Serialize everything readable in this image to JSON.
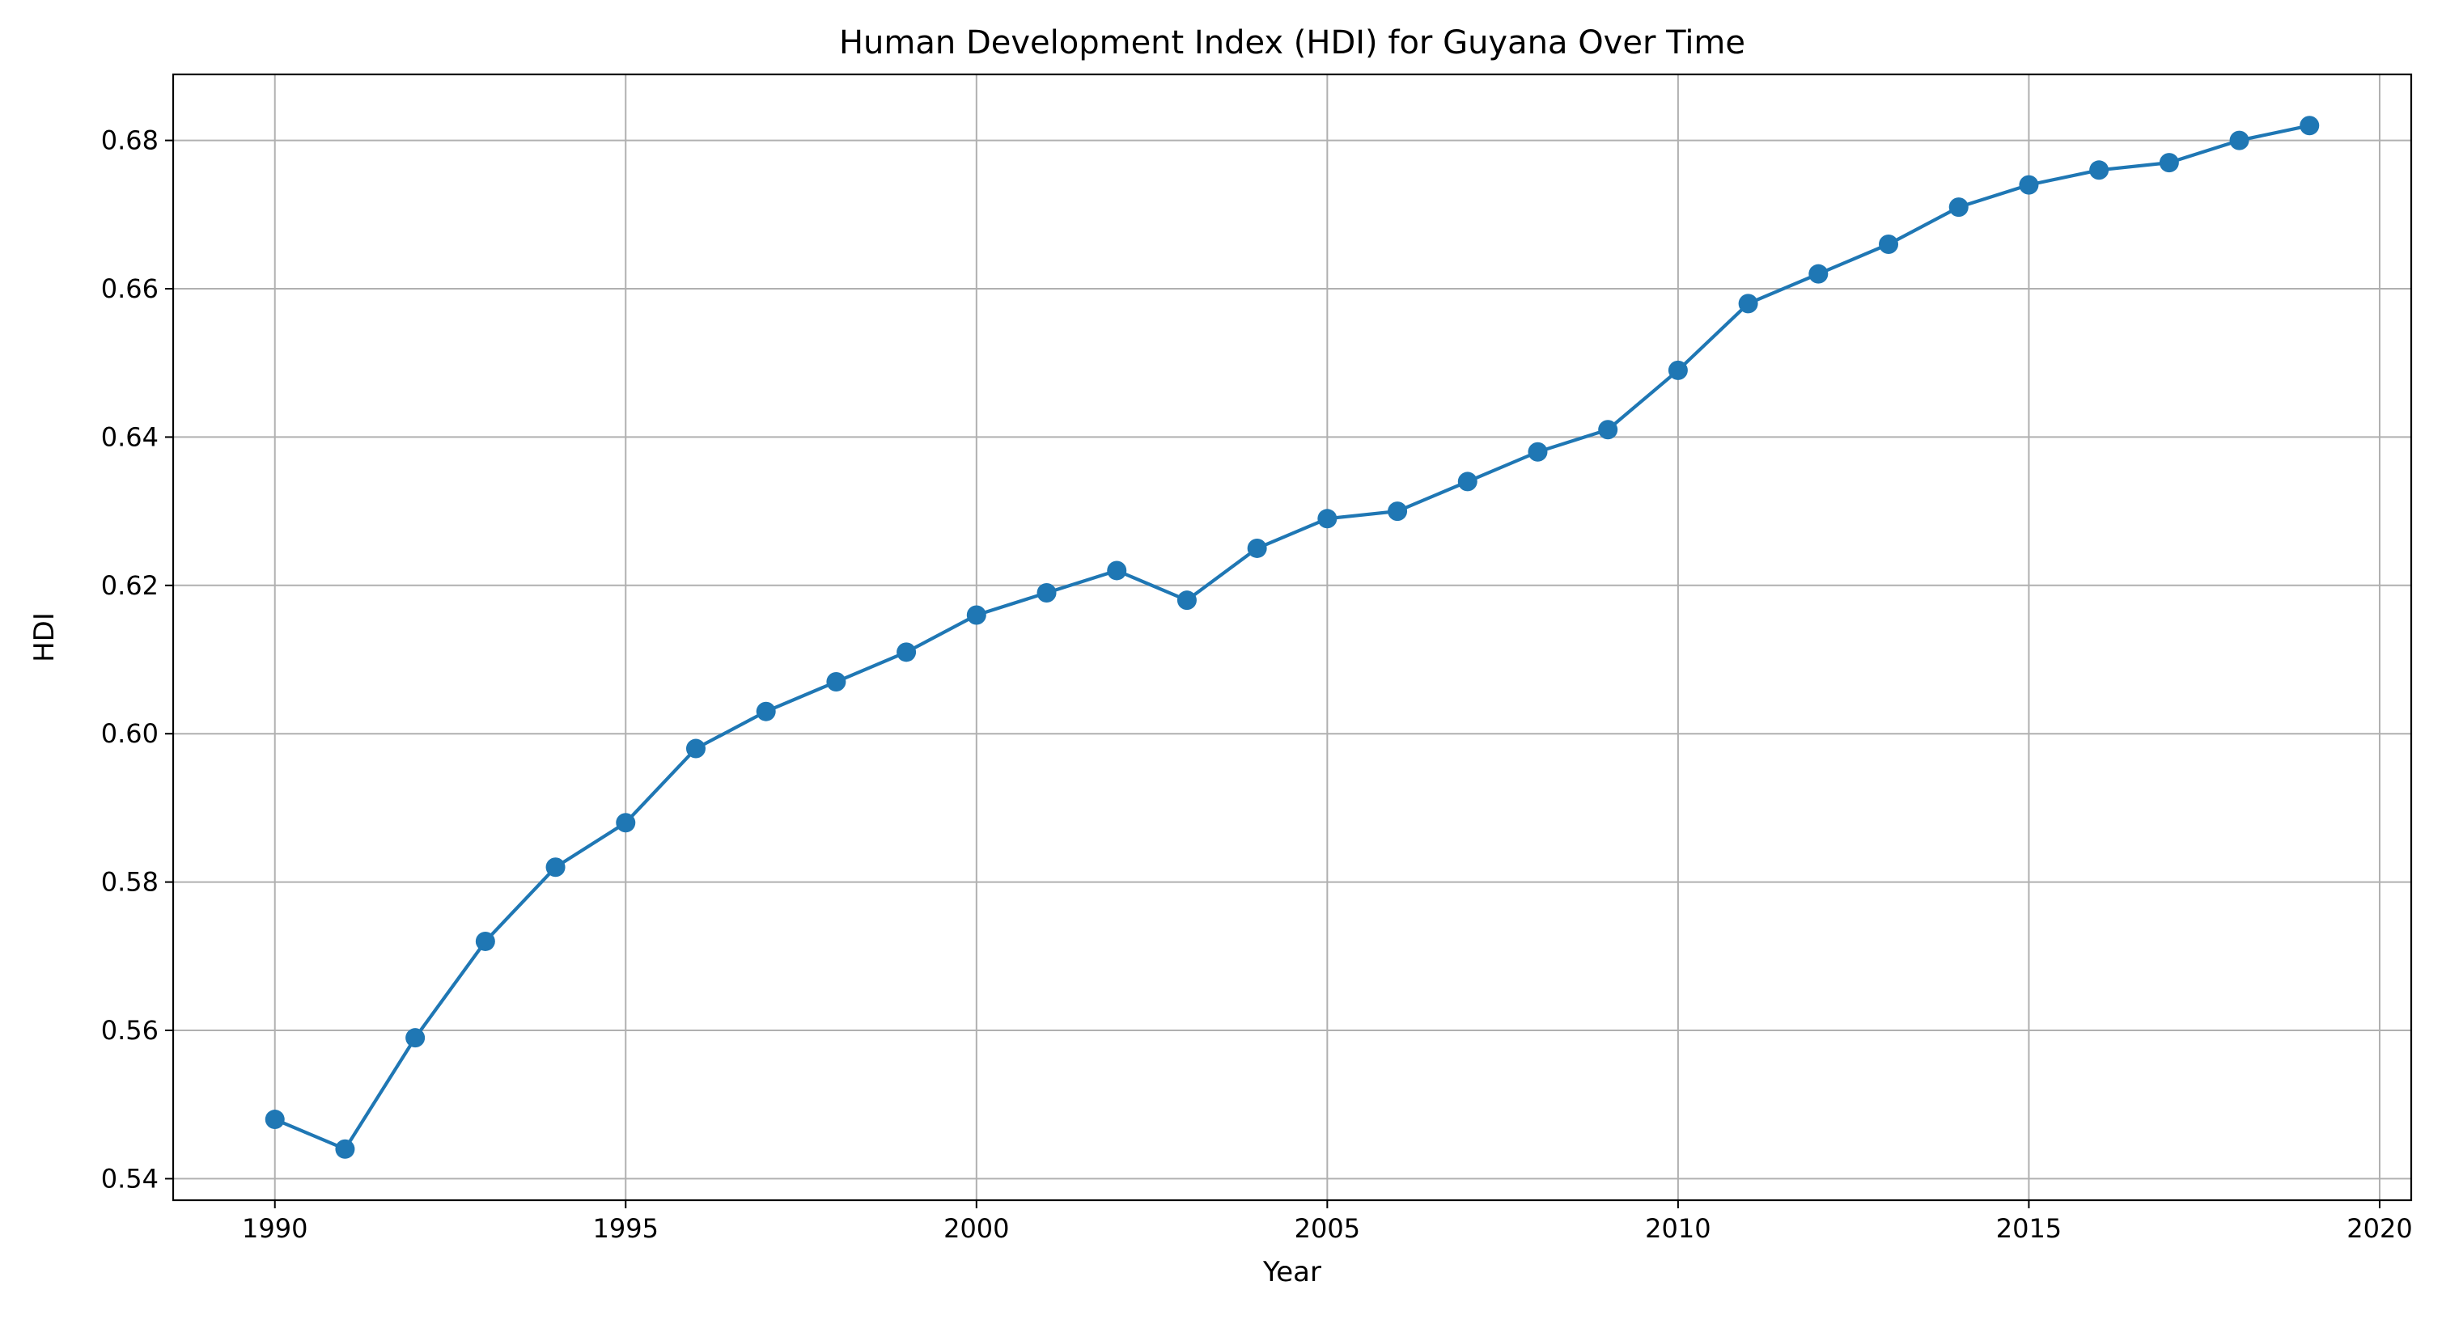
{
  "chart_data": {
    "type": "line",
    "title": "Human Development Index (HDI) for Guyana Over Time",
    "xlabel": "Year",
    "ylabel": "HDI",
    "xlim": [
      1988.55,
      2020.45
    ],
    "ylim": [
      0.5371,
      0.6889
    ],
    "xticks": [
      1990,
      1995,
      2000,
      2005,
      2010,
      2015,
      2020
    ],
    "yticks": [
      0.54,
      0.56,
      0.58,
      0.6,
      0.62,
      0.64,
      0.66,
      0.68
    ],
    "ytick_labels": [
      "0.54",
      "0.56",
      "0.58",
      "0.60",
      "0.62",
      "0.64",
      "0.66",
      "0.68"
    ],
    "grid": true,
    "series": [
      {
        "color": "#1f77b4",
        "marker": "circle",
        "x": [
          1990,
          1991,
          1992,
          1993,
          1994,
          1995,
          1996,
          1997,
          1998,
          1999,
          2000,
          2001,
          2002,
          2003,
          2004,
          2005,
          2006,
          2007,
          2008,
          2009,
          2010,
          2011,
          2012,
          2013,
          2014,
          2015,
          2016,
          2017,
          2018,
          2019
        ],
        "y": [
          0.548,
          0.544,
          0.559,
          0.572,
          0.582,
          0.588,
          0.598,
          0.603,
          0.607,
          0.611,
          0.616,
          0.619,
          0.622,
          0.618,
          0.625,
          0.629,
          0.63,
          0.634,
          0.638,
          0.641,
          0.649,
          0.658,
          0.662,
          0.666,
          0.671,
          0.674,
          0.676,
          0.677,
          0.68,
          0.682
        ]
      }
    ]
  }
}
